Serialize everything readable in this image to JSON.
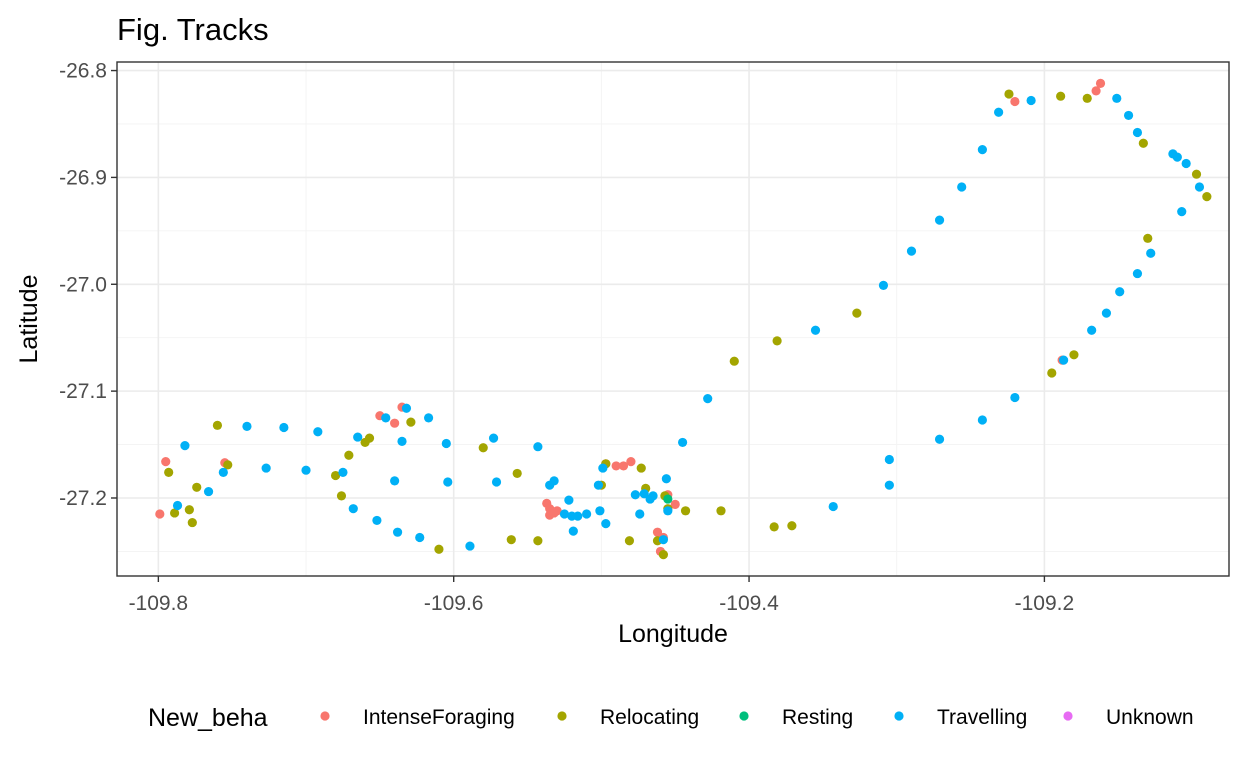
{
  "chart_data": {
    "type": "scatter",
    "title": "Fig. Tracks",
    "xlabel": "Longitude",
    "ylabel": "Latitude",
    "xlim": [
      -109.828,
      -109.075
    ],
    "ylim": [
      -27.273,
      -26.792
    ],
    "xticks": [
      -109.8,
      -109.6,
      -109.4,
      -109.2
    ],
    "xtick_labels": [
      "-109.8",
      "-109.6",
      "-109.4",
      "-109.2"
    ],
    "yticks": [
      -26.8,
      -26.9,
      -27.0,
      -27.1,
      -27.2
    ],
    "ytick_labels": [
      "-26.8",
      "-26.9",
      "-27.0",
      "-27.1",
      "-27.2"
    ],
    "grid": true,
    "legend_position": "bottom",
    "legend_title": "New_beha",
    "series": [
      {
        "name": "IntenseForaging",
        "color": "#F8766D",
        "points": [
          [
            -109.799,
            -27.215
          ],
          [
            -109.795,
            -27.166
          ],
          [
            -109.755,
            -27.167
          ],
          [
            -109.65,
            -27.123
          ],
          [
            -109.64,
            -27.13
          ],
          [
            -109.635,
            -27.115
          ],
          [
            -109.537,
            -27.205
          ],
          [
            -109.535,
            -27.21
          ],
          [
            -109.535,
            -27.216
          ],
          [
            -109.532,
            -27.214
          ],
          [
            -109.53,
            -27.212
          ],
          [
            -109.497,
            -27.168
          ],
          [
            -109.49,
            -27.17
          ],
          [
            -109.485,
            -27.17
          ],
          [
            -109.48,
            -27.166
          ],
          [
            -109.462,
            -27.232
          ],
          [
            -109.46,
            -27.25
          ],
          [
            -109.458,
            -27.237
          ],
          [
            -109.455,
            -27.197
          ],
          [
            -109.45,
            -27.206
          ],
          [
            -109.22,
            -26.829
          ],
          [
            -109.188,
            -27.071
          ],
          [
            -109.165,
            -26.819
          ],
          [
            -109.162,
            -26.812
          ]
        ]
      },
      {
        "name": "Relocating",
        "color": "#A3A500",
        "points": [
          [
            -109.793,
            -27.176
          ],
          [
            -109.789,
            -27.214
          ],
          [
            -109.779,
            -27.211
          ],
          [
            -109.777,
            -27.223
          ],
          [
            -109.774,
            -27.19
          ],
          [
            -109.76,
            -27.132
          ],
          [
            -109.753,
            -27.169
          ],
          [
            -109.68,
            -27.179
          ],
          [
            -109.676,
            -27.198
          ],
          [
            -109.671,
            -27.16
          ],
          [
            -109.66,
            -27.148
          ],
          [
            -109.657,
            -27.144
          ],
          [
            -109.629,
            -27.129
          ],
          [
            -109.61,
            -27.248
          ],
          [
            -109.58,
            -27.153
          ],
          [
            -109.561,
            -27.239
          ],
          [
            -109.557,
            -27.177
          ],
          [
            -109.543,
            -27.24
          ],
          [
            -109.5,
            -27.188
          ],
          [
            -109.497,
            -27.168
          ],
          [
            -109.481,
            -27.24
          ],
          [
            -109.473,
            -27.172
          ],
          [
            -109.47,
            -27.191
          ],
          [
            -109.462,
            -27.24
          ],
          [
            -109.458,
            -27.253
          ],
          [
            -109.457,
            -27.198
          ],
          [
            -109.455,
            -27.21
          ],
          [
            -109.443,
            -27.212
          ],
          [
            -109.419,
            -27.212
          ],
          [
            -109.41,
            -27.072
          ],
          [
            -109.383,
            -27.227
          ],
          [
            -109.381,
            -27.053
          ],
          [
            -109.371,
            -27.226
          ],
          [
            -109.327,
            -27.027
          ],
          [
            -109.224,
            -26.822
          ],
          [
            -109.195,
            -27.083
          ],
          [
            -109.189,
            -26.824
          ],
          [
            -109.18,
            -27.066
          ],
          [
            -109.171,
            -26.826
          ],
          [
            -109.133,
            -26.868
          ],
          [
            -109.13,
            -26.957
          ],
          [
            -109.097,
            -26.897
          ],
          [
            -109.09,
            -26.918
          ]
        ]
      },
      {
        "name": "Resting",
        "color": "#00BF7D",
        "points": [
          [
            -109.455,
            -27.201
          ]
        ]
      },
      {
        "name": "Travelling",
        "color": "#00B0F6",
        "points": [
          [
            -109.787,
            -27.207
          ],
          [
            -109.782,
            -27.151
          ],
          [
            -109.766,
            -27.194
          ],
          [
            -109.756,
            -27.176
          ],
          [
            -109.74,
            -27.133
          ],
          [
            -109.727,
            -27.172
          ],
          [
            -109.715,
            -27.134
          ],
          [
            -109.7,
            -27.174
          ],
          [
            -109.692,
            -27.138
          ],
          [
            -109.675,
            -27.176
          ],
          [
            -109.668,
            -27.21
          ],
          [
            -109.665,
            -27.143
          ],
          [
            -109.652,
            -27.221
          ],
          [
            -109.646,
            -27.125
          ],
          [
            -109.64,
            -27.184
          ],
          [
            -109.638,
            -27.232
          ],
          [
            -109.635,
            -27.147
          ],
          [
            -109.632,
            -27.116
          ],
          [
            -109.623,
            -27.237
          ],
          [
            -109.617,
            -27.125
          ],
          [
            -109.605,
            -27.149
          ],
          [
            -109.604,
            -27.185
          ],
          [
            -109.589,
            -27.245
          ],
          [
            -109.573,
            -27.144
          ],
          [
            -109.571,
            -27.185
          ],
          [
            -109.543,
            -27.152
          ],
          [
            -109.535,
            -27.188
          ],
          [
            -109.532,
            -27.184
          ],
          [
            -109.525,
            -27.215
          ],
          [
            -109.522,
            -27.202
          ],
          [
            -109.52,
            -27.217
          ],
          [
            -109.519,
            -27.231
          ],
          [
            -109.516,
            -27.217
          ],
          [
            -109.51,
            -27.215
          ],
          [
            -109.502,
            -27.188
          ],
          [
            -109.501,
            -27.212
          ],
          [
            -109.499,
            -27.172
          ],
          [
            -109.497,
            -27.224
          ],
          [
            -109.477,
            -27.197
          ],
          [
            -109.474,
            -27.215
          ],
          [
            -109.471,
            -27.196
          ],
          [
            -109.467,
            -27.201
          ],
          [
            -109.465,
            -27.198
          ],
          [
            -109.458,
            -27.239
          ],
          [
            -109.456,
            -27.182
          ],
          [
            -109.455,
            -27.212
          ],
          [
            -109.445,
            -27.148
          ],
          [
            -109.428,
            -27.107
          ],
          [
            -109.355,
            -27.043
          ],
          [
            -109.343,
            -27.208
          ],
          [
            -109.309,
            -27.001
          ],
          [
            -109.305,
            -27.188
          ],
          [
            -109.305,
            -27.164
          ],
          [
            -109.29,
            -26.969
          ],
          [
            -109.271,
            -27.145
          ],
          [
            -109.271,
            -26.94
          ],
          [
            -109.256,
            -26.909
          ],
          [
            -109.242,
            -27.127
          ],
          [
            -109.242,
            -26.874
          ],
          [
            -109.231,
            -26.839
          ],
          [
            -109.22,
            -27.106
          ],
          [
            -109.209,
            -26.828
          ],
          [
            -109.187,
            -27.071
          ],
          [
            -109.168,
            -27.043
          ],
          [
            -109.158,
            -27.027
          ],
          [
            -109.151,
            -26.826
          ],
          [
            -109.149,
            -27.007
          ],
          [
            -109.143,
            -26.842
          ],
          [
            -109.137,
            -26.858
          ],
          [
            -109.137,
            -26.99
          ],
          [
            -109.128,
            -26.971
          ],
          [
            -109.113,
            -26.878
          ],
          [
            -109.11,
            -26.881
          ],
          [
            -109.107,
            -26.932
          ],
          [
            -109.104,
            -26.887
          ],
          [
            -109.095,
            -26.909
          ]
        ]
      },
      {
        "name": "Unknown",
        "color": "#E76BF3",
        "points": []
      }
    ]
  }
}
